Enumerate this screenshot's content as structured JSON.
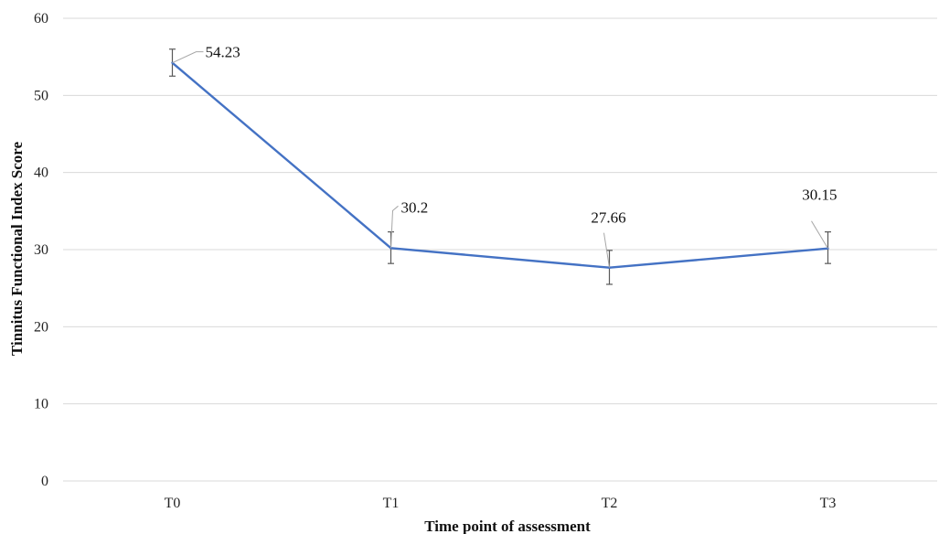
{
  "chart_data": {
    "type": "line",
    "categories": [
      "T0",
      "T1",
      "T2",
      "T3"
    ],
    "series": [
      {
        "values": [
          54.23,
          30.2,
          27.66,
          30.15
        ],
        "error_low": [
          52.5,
          28.2,
          25.5,
          28.2
        ],
        "error_high": [
          56.0,
          32.3,
          29.9,
          32.3
        ],
        "color": "#4472c4"
      }
    ],
    "data_labels": [
      "54.23",
      "30.2",
      "27.66",
      "30.15"
    ],
    "title": "",
    "xlabel": "Time point of assessment",
    "ylabel": "Tinnitus Functional Index Score",
    "ylim": [
      0,
      60
    ],
    "yticks": [
      0,
      10,
      20,
      30,
      40,
      50,
      60
    ],
    "grid": "horizontal",
    "legend": "none"
  }
}
